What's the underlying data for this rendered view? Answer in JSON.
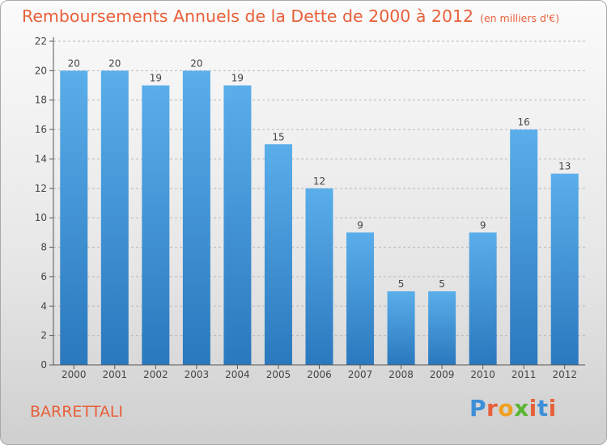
{
  "header": {
    "title": "Remboursements Annuels de la Dette de 2000 à 2012",
    "subtitle": "(en milliers d'€)"
  },
  "footer": {
    "commune": "BARRETTALI",
    "logo_letters": [
      "P",
      "r",
      "o",
      "x",
      "i",
      "t",
      "i"
    ],
    "logo_colors": [
      "#3d8fd8",
      "#e8603a",
      "#f0a020",
      "#5bb531",
      "#e8603a",
      "#3d8fd8",
      "#e8603a"
    ]
  },
  "colors": {
    "bar_top": "#5aaeea",
    "bar_bottom": "#2a78be",
    "axis": "#555555",
    "grid": "#b8b8b8",
    "text": "#444444"
  },
  "chart_data": {
    "type": "bar",
    "title": "Remboursements Annuels de la Dette de 2000 à 2012",
    "xlabel": "",
    "ylabel": "",
    "categories": [
      "2000",
      "2001",
      "2002",
      "2003",
      "2004",
      "2005",
      "2006",
      "2007",
      "2008",
      "2009",
      "2010",
      "2011",
      "2012"
    ],
    "values": [
      20,
      20,
      19,
      20,
      19,
      15,
      12,
      9,
      5,
      5,
      9,
      16,
      13
    ],
    "ylim": [
      0,
      22
    ],
    "yticks": [
      0,
      2,
      4,
      6,
      8,
      10,
      12,
      14,
      16,
      18,
      20,
      22
    ],
    "grid": true
  }
}
